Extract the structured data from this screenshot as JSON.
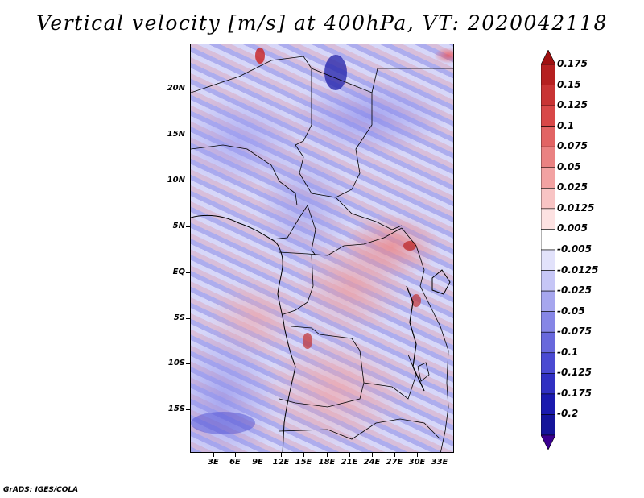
{
  "title": "Vertical velocity [m/s] at 400hPa, VT: 2020042118",
  "footer": "GrADS: IGES/COLA",
  "lat_labels": [
    "20N",
    "15N",
    "10N",
    "5N",
    "EQ",
    "5S",
    "10S",
    "15S"
  ],
  "lon_labels": [
    "3E",
    "6E",
    "9E",
    "12E",
    "15E",
    "18E",
    "21E",
    "24E",
    "27E",
    "30E",
    "33E"
  ],
  "colorbar": {
    "labels": [
      "0.175",
      "0.15",
      "0.125",
      "0.1",
      "0.075",
      "0.05",
      "0.025",
      "0.0125",
      "0.005",
      "-0.005",
      "-0.0125",
      "-0.025",
      "-0.05",
      "-0.075",
      "-0.1",
      "-0.125",
      "-0.175",
      "-0.2"
    ],
    "colors": [
      "#a01010",
      "#b52020",
      "#c83434",
      "#d84848",
      "#e26464",
      "#ea8282",
      "#f2a2a2",
      "#f8c4c4",
      "#fde2e2",
      "#ffffff",
      "#e2e2fb",
      "#c6c6f6",
      "#a6a6ee",
      "#8686e6",
      "#6868dc",
      "#4a4ad2",
      "#3030c2",
      "#1a1aae",
      "#14149a",
      "#3a0090"
    ]
  }
}
